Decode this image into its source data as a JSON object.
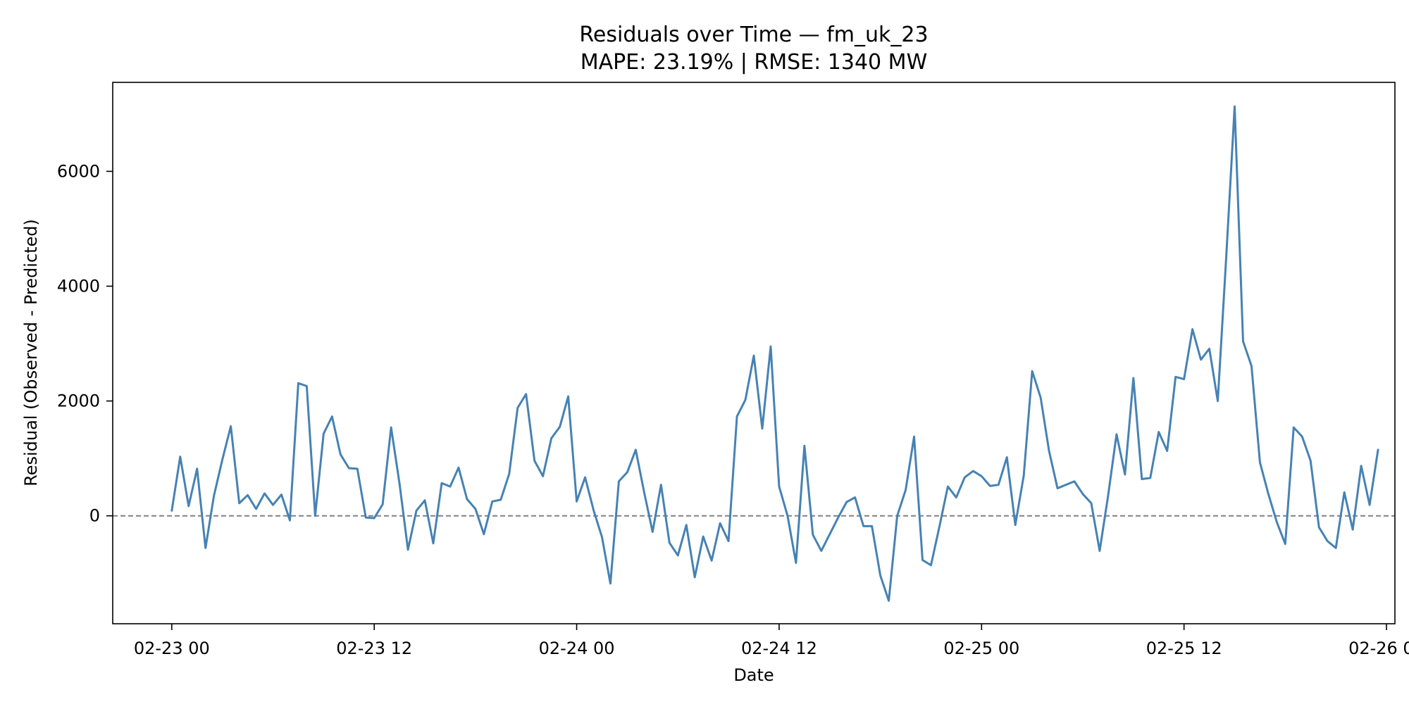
{
  "chart_data": {
    "type": "line",
    "title": "Residuals over Time — fm_uk_23",
    "subtitle": "MAPE: 23.19%  |  RMSE: 1340 MW",
    "xlabel": "Date",
    "ylabel": "Residual (Observed - Predicted)",
    "xlim": [
      "2023-02-22T20:30",
      "2023-02-26T00:30"
    ],
    "ylim": [
      -1880,
      7550
    ],
    "x_ticks": [
      {
        "value": "2023-02-23T00:00",
        "label": "02-23 00"
      },
      {
        "value": "2023-02-23T12:00",
        "label": "02-23 12"
      },
      {
        "value": "2023-02-24T00:00",
        "label": "02-24 00"
      },
      {
        "value": "2023-02-24T12:00",
        "label": "02-24 12"
      },
      {
        "value": "2023-02-25T00:00",
        "label": "02-25 00"
      },
      {
        "value": "2023-02-25T12:00",
        "label": "02-25 12"
      },
      {
        "value": "2023-02-26T00:00",
        "label": "02-26 00"
      }
    ],
    "y_ticks": [
      {
        "value": 0,
        "label": "0"
      },
      {
        "value": 2000,
        "label": "2000"
      },
      {
        "value": 4000,
        "label": "4000"
      },
      {
        "value": 6000,
        "label": "6000"
      }
    ],
    "reference_line": {
      "y": 0,
      "style": "dashed",
      "color": "#808080"
    },
    "grid": false,
    "series": [
      {
        "color": "#4682b4",
        "x_start": "2023-02-23T00:00",
        "x_step_minutes": 30,
        "values": [
          90,
          1030,
          170,
          820,
          -560,
          350,
          980,
          1560,
          220,
          360,
          120,
          390,
          190,
          370,
          -80,
          2310,
          2260,
          0,
          1430,
          1730,
          1070,
          830,
          820,
          -30,
          -40,
          200,
          1540,
          560,
          -590,
          90,
          270,
          -480,
          570,
          510,
          840,
          290,
          120,
          -320,
          250,
          280,
          730,
          1880,
          2120,
          960,
          690,
          1350,
          1550,
          2080,
          250,
          670,
          100,
          -370,
          -1180,
          600,
          760,
          1150,
          410,
          -280,
          540,
          -470,
          -690,
          -160,
          -1070,
          -360,
          -780,
          -130,
          -440,
          1730,
          2020,
          2790,
          1520,
          2950,
          510,
          0,
          -820,
          1220,
          -330,
          -610,
          -320,
          -30,
          240,
          320,
          -180,
          -180,
          -1040,
          -1480,
          0,
          450,
          1380,
          -770,
          -860,
          -190,
          510,
          320,
          670,
          780,
          690,
          520,
          540,
          1020,
          -160,
          700,
          2520,
          2060,
          1130,
          480,
          540,
          600,
          380,
          220,
          -610,
          350,
          1420,
          720,
          2400,
          640,
          660,
          1460,
          1130,
          2420,
          2380,
          3250,
          2720,
          2910,
          2000,
          4500,
          7130,
          3040,
          2610,
          930,
          380,
          -110,
          -490,
          1540,
          1380,
          960,
          -200,
          -440,
          -560,
          410,
          -240,
          870,
          190,
          1150
        ]
      }
    ]
  }
}
